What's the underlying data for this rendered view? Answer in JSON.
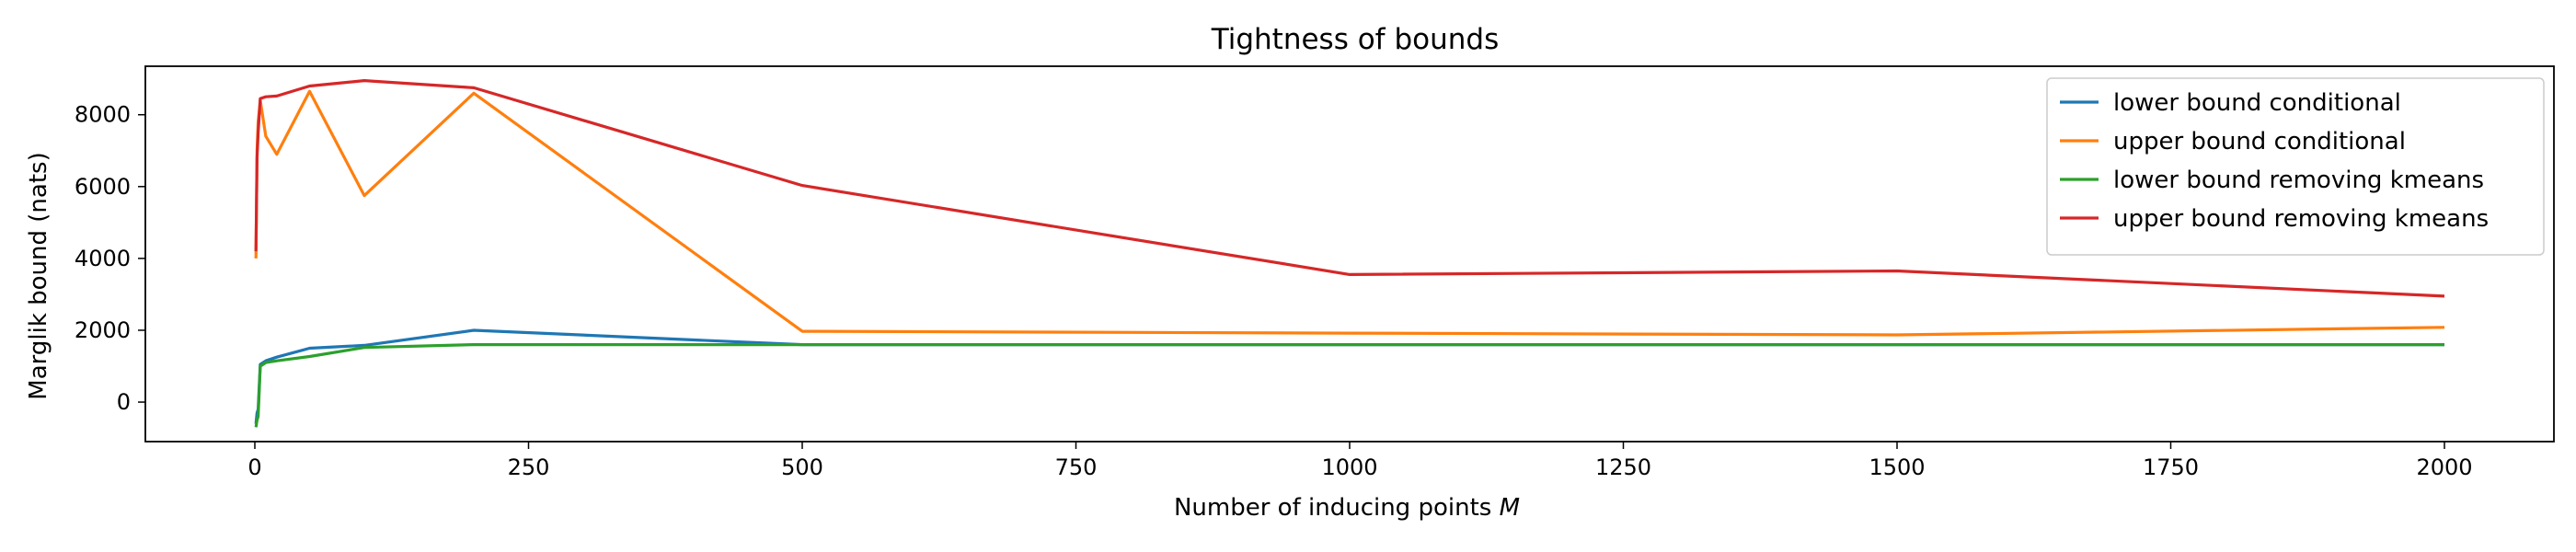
{
  "chart_data": {
    "type": "line",
    "title": "Tightness of bounds",
    "xlabel": "Number of inducing points",
    "xlabel_symbol": "M",
    "ylabel": "Marglik bound (nats)",
    "xlim": [
      -100,
      2100
    ],
    "ylim": [
      -1100,
      9350
    ],
    "xticks": [
      0,
      250,
      500,
      750,
      1000,
      1250,
      1500,
      1750,
      2000
    ],
    "yticks": [
      0,
      2000,
      4000,
      6000,
      8000
    ],
    "grid": false,
    "legend_position": "top-right",
    "series": [
      {
        "name": "lower bound conditional",
        "color": "#1f77b4",
        "x": [
          1,
          2,
          3,
          5,
          10,
          20,
          50,
          100,
          200,
          500,
          1000,
          1500,
          2000
        ],
        "y": [
          -600,
          -300,
          -200,
          1050,
          1150,
          1250,
          1500,
          1580,
          2000,
          1600,
          1600,
          1600,
          1600
        ]
      },
      {
        "name": "upper bound conditional",
        "color": "#ff7f0e",
        "x": [
          1,
          2,
          3,
          5,
          10,
          20,
          50,
          100,
          200,
          500,
          1000,
          1500,
          2000
        ],
        "y": [
          4000,
          7000,
          7800,
          8400,
          7400,
          6900,
          8650,
          5750,
          8600,
          1970,
          1920,
          1870,
          2080
        ]
      },
      {
        "name": "lower bound removing kmeans",
        "color": "#2ca02c",
        "x": [
          1,
          2,
          3,
          5,
          10,
          20,
          50,
          100,
          200,
          500,
          1000,
          1500,
          2000
        ],
        "y": [
          -700,
          -500,
          -400,
          1000,
          1100,
          1150,
          1270,
          1520,
          1600,
          1600,
          1600,
          1600,
          1600
        ]
      },
      {
        "name": "upper bound removing kmeans",
        "color": "#d62728",
        "x": [
          1,
          2,
          3,
          5,
          10,
          20,
          50,
          100,
          200,
          500,
          1000,
          1500,
          2000
        ],
        "y": [
          4200,
          6800,
          7500,
          8450,
          8500,
          8520,
          8800,
          8950,
          8750,
          6030,
          3550,
          3650,
          2950
        ]
      }
    ]
  }
}
